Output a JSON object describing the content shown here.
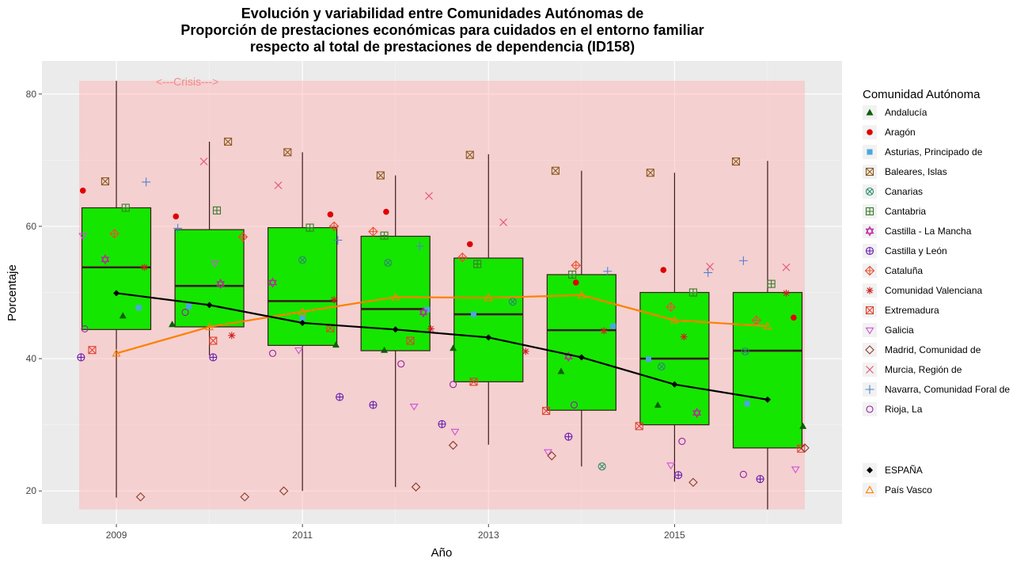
{
  "chart_data": {
    "type": "box",
    "title": [
      "Evolución y variabilidad entre Comunidades Autónomas de",
      "Proporción de prestaciones económicas para cuidados en el entorno familiar",
      "respecto al total de prestaciones de dependencia (ID158)"
    ],
    "xlabel": "Año",
    "ylabel": "Porcentaje",
    "xlim": [
      2008.2,
      2016.8
    ],
    "ylim": [
      15,
      85
    ],
    "x_ticks": [
      2009,
      2011,
      2013,
      2015
    ],
    "y_ticks": [
      20,
      40,
      60,
      80
    ],
    "grid": true,
    "annotation": {
      "text": "<---Crisis--->",
      "x": 2010,
      "y": 82
    },
    "crisis_band": {
      "x": [
        2008.6,
        2016.4
      ],
      "y": [
        17.2,
        82
      ]
    },
    "legend_title": "Comunidad Autónoma",
    "legend_position": "right",
    "box_color": "#15e600",
    "boxes": [
      {
        "x": 2009,
        "min": 19,
        "q1": 44.4,
        "median": 53.8,
        "q3": 62.8,
        "max": 82
      },
      {
        "x": 2010,
        "min": 40.5,
        "q1": 44.8,
        "median": 51.0,
        "q3": 59.5,
        "max": 72.8
      },
      {
        "x": 2011,
        "min": 20,
        "q1": 42.0,
        "median": 48.7,
        "q3": 59.8,
        "max": 71.2
      },
      {
        "x": 2012,
        "min": 20.6,
        "q1": 41.2,
        "median": 47.5,
        "q3": 58.5,
        "max": 67.7
      },
      {
        "x": 2013,
        "min": 27,
        "q1": 36.5,
        "median": 46.7,
        "q3": 55.2,
        "max": 70.9
      },
      {
        "x": 2014,
        "min": 23.7,
        "q1": 32.2,
        "median": 44.3,
        "q3": 52.7,
        "max": 68.4
      },
      {
        "x": 2015,
        "min": 21.4,
        "q1": 30.0,
        "median": 40.0,
        "q3": 50.0,
        "max": 68.1
      },
      {
        "x": 2016,
        "min": 17.2,
        "q1": 26.5,
        "median": 41.2,
        "q3": 50.0,
        "max": 69.9
      }
    ],
    "series": [
      {
        "name": "Andalucía",
        "marker": "triangle",
        "color": "#0b6000",
        "points": [
          [
            2009.07,
            46.5
          ],
          [
            2009.6,
            45.2
          ],
          [
            2010.12,
            null
          ],
          [
            2011.36,
            42.1
          ],
          [
            2011.88,
            41.3
          ],
          [
            2012.62,
            41.6
          ],
          [
            2013.78,
            38.1
          ],
          [
            2014.82,
            33
          ],
          [
            2016.38,
            29.8
          ]
        ]
      },
      {
        "name": "Aragón",
        "marker": "dot",
        "color": "#e00000",
        "points": [
          [
            2008.64,
            65.4
          ],
          [
            2009.64,
            61.5
          ],
          [
            2011.3,
            61.8
          ],
          [
            2011.9,
            62.2
          ],
          [
            2012.8,
            57.3
          ],
          [
            2013.94,
            51.5
          ],
          [
            2014.88,
            53.4
          ],
          [
            2016.28,
            46.2
          ]
        ]
      },
      {
        "name": "Asturias, Principado de",
        "marker": "square",
        "color": "#4aa7e0",
        "points": [
          [
            2009.24,
            47.7
          ],
          [
            2009.78,
            47.9
          ],
          [
            2011.0,
            46.1
          ],
          [
            2012.34,
            47.4
          ],
          [
            2012.84,
            46.7
          ],
          [
            2014.34,
            44.9
          ],
          [
            2014.72,
            39.9
          ],
          [
            2015.78,
            33.2
          ]
        ]
      },
      {
        "name": "Baleares, Islas",
        "marker": "boxx",
        "color": "#8a5a1e",
        "points": [
          [
            2008.88,
            66.8
          ],
          [
            2010.2,
            72.8
          ],
          [
            2010.84,
            71.2
          ],
          [
            2011.84,
            67.7
          ],
          [
            2012.8,
            70.8
          ],
          [
            2013.72,
            68.4
          ],
          [
            2014.74,
            68.1
          ],
          [
            2015.66,
            69.8
          ]
        ]
      },
      {
        "name": "Canarias",
        "marker": "circlex",
        "color": "#2a8a6a",
        "points": [
          [
            2011.0,
            54.9
          ],
          [
            2011.92,
            54.5
          ],
          [
            2013.26,
            48.6
          ],
          [
            2014.22,
            23.7
          ],
          [
            2014.86,
            38.8
          ],
          [
            2015.76,
            41.1
          ]
        ]
      },
      {
        "name": "Cantabria",
        "marker": "boxplus",
        "color": "#3a7a2a",
        "points": [
          [
            2009.1,
            62.8
          ],
          [
            2010.08,
            62.4
          ],
          [
            2011.08,
            59.8
          ],
          [
            2011.88,
            58.6
          ],
          [
            2012.88,
            54.3
          ],
          [
            2013.9,
            52.7
          ],
          [
            2015.2,
            50
          ],
          [
            2016.04,
            51.3
          ]
        ]
      },
      {
        "name": "Castilla - La Mancha",
        "marker": "star",
        "color": "#c020a0",
        "points": [
          [
            2008.88,
            55
          ],
          [
            2010.12,
            51.3
          ],
          [
            2010.68,
            51.5
          ],
          [
            2012.3,
            47
          ],
          [
            2013.86,
            40.3
          ],
          [
            2015.24,
            31.8
          ]
        ]
      },
      {
        "name": "Castilla y León",
        "marker": "circleplus",
        "color": "#6a1ab0",
        "points": [
          [
            2008.62,
            40.2
          ],
          [
            2010.04,
            40.2
          ],
          [
            2011.4,
            34.2
          ],
          [
            2011.76,
            33
          ],
          [
            2012.5,
            30.1
          ],
          [
            2013.86,
            28.2
          ],
          [
            2015.04,
            22.4
          ],
          [
            2015.92,
            21.8
          ]
        ]
      },
      {
        "name": "Cataluña",
        "marker": "diamondplus",
        "color": "#e85030",
        "points": [
          [
            2008.98,
            58.9
          ],
          [
            2010.36,
            58.4
          ],
          [
            2011.34,
            60
          ],
          [
            2011.76,
            59.2
          ],
          [
            2012.72,
            55.3
          ],
          [
            2013.94,
            54.1
          ],
          [
            2014.96,
            47.8
          ],
          [
            2015.88,
            45.8
          ]
        ]
      },
      {
        "name": "Comunidad Valenciana",
        "marker": "asterisk",
        "color": "#d02020",
        "points": [
          [
            2009.3,
            53.8
          ],
          [
            2010.24,
            43.5
          ],
          [
            2011.34,
            48.9
          ],
          [
            2012.38,
            44.5
          ],
          [
            2013.4,
            41.1
          ],
          [
            2014.24,
            44.2
          ],
          [
            2015.1,
            43.3
          ],
          [
            2016.2,
            49.9
          ]
        ]
      },
      {
        "name": "Extremadura",
        "marker": "boxx2",
        "color": "#e04030",
        "points": [
          [
            2008.74,
            41.3
          ],
          [
            2010.04,
            42.7
          ],
          [
            2011.3,
            44.6
          ],
          [
            2012.16,
            42.7
          ],
          [
            2012.84,
            36.5
          ],
          [
            2013.62,
            32.1
          ],
          [
            2014.62,
            29.8
          ],
          [
            2016.36,
            26.4
          ]
        ]
      },
      {
        "name": "Galicia",
        "marker": "trianglebar",
        "color": "#d050d8",
        "points": [
          [
            2008.64,
            58.6
          ],
          [
            2010.06,
            54.4
          ],
          [
            2010.96,
            41.3
          ],
          [
            2012.2,
            32.8
          ],
          [
            2012.64,
            29
          ],
          [
            2013.64,
            25.9
          ],
          [
            2014.96,
            23.9
          ],
          [
            2016.3,
            23.3
          ]
        ]
      },
      {
        "name": "Madrid, Comunidad de",
        "marker": "diamond",
        "color": "#8a3a2a",
        "points": [
          [
            2009.26,
            19.1
          ],
          [
            2010.38,
            19.1
          ],
          [
            2010.8,
            20
          ],
          [
            2012.22,
            20.6
          ],
          [
            2012.62,
            26.9
          ],
          [
            2013.68,
            25.3
          ],
          [
            2015.2,
            21.3
          ],
          [
            2016.4,
            26.5
          ]
        ]
      },
      {
        "name": "Murcia, Región de",
        "marker": "cross",
        "color": "#e85070",
        "points": [
          [
            2009.94,
            69.8
          ],
          [
            2010.74,
            66.2
          ],
          [
            2012.36,
            64.6
          ],
          [
            2013.16,
            60.6
          ],
          [
            2015.38,
            53.9
          ],
          [
            2016.2,
            53.8
          ]
        ]
      },
      {
        "name": "Navarra, Comunidad Foral de",
        "marker": "plus",
        "color": "#5080d0",
        "points": [
          [
            2009.32,
            66.7
          ],
          [
            2009.66,
            59.7
          ],
          [
            2011.38,
            57.9
          ],
          [
            2012.26,
            57.0
          ],
          [
            2014.28,
            53.2
          ],
          [
            2015.36,
            53
          ],
          [
            2015.74,
            54.8
          ]
        ]
      },
      {
        "name": "Rioja, La",
        "marker": "circle",
        "color": "#9020a0",
        "points": [
          [
            2008.66,
            44.5
          ],
          [
            2009.74,
            47
          ],
          [
            2010.68,
            40.8
          ],
          [
            2012.06,
            39.2
          ],
          [
            2012.62,
            36.1
          ],
          [
            2013.92,
            33
          ],
          [
            2015.08,
            27.5
          ],
          [
            2015.74,
            22.5
          ]
        ]
      }
    ],
    "lines": [
      {
        "name": "ESPAÑA",
        "marker": "filleddiamond",
        "color": "#000000",
        "points": [
          [
            2009,
            49.9
          ],
          [
            2010,
            48.1
          ],
          [
            2011,
            45.4
          ],
          [
            2012,
            44.4
          ],
          [
            2013,
            43.2
          ],
          [
            2014,
            40.2
          ],
          [
            2015,
            36.1
          ],
          [
            2016,
            33.8
          ]
        ]
      },
      {
        "name": "País Vasco",
        "marker": "triangle-open",
        "color": "#ff7f00",
        "points": [
          [
            2009,
            40.8
          ],
          [
            2010,
            44.8
          ],
          [
            2011,
            47.1
          ],
          [
            2012,
            49.3
          ],
          [
            2013,
            49.2
          ],
          [
            2014,
            49.6
          ],
          [
            2015,
            45.8
          ],
          [
            2016,
            44.9
          ]
        ]
      }
    ]
  }
}
